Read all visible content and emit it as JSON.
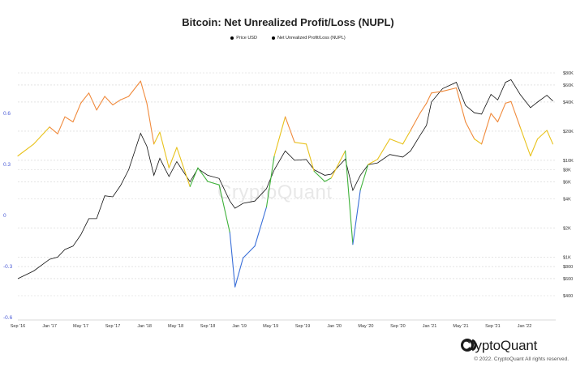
{
  "chart_data": {
    "type": "line",
    "title": "Bitcoin: Net Unrealized Profit/Loss (NUPL)",
    "legend": [
      "Price USD",
      "Net Unrealized Profit/Loss (NUPL)"
    ],
    "legend_placement": "top-center",
    "x_ticks": [
      "Sep '16",
      "Jan '17",
      "May '17",
      "Sep '17",
      "Jan '18",
      "May '18",
      "Sep '18",
      "Jan '19",
      "May '19",
      "Sep '19",
      "Jan '20",
      "May '20",
      "Sep '20",
      "Jan '21",
      "May '21",
      "Sep '21",
      "Jan '22"
    ],
    "x_range": [
      "2016-09",
      "2022-05"
    ],
    "y_left": {
      "ticks": [
        0.6,
        0.3,
        0,
        -0.3,
        -0.6
      ],
      "range": [
        -0.6,
        0.8
      ]
    },
    "y_right": {
      "ticks": [
        "$80K",
        "$60K",
        "$40K",
        "$20K",
        "$10K",
        "$8K",
        "$6K",
        "$4K",
        "$2K",
        "$1K",
        "$800",
        "$600",
        "$400"
      ],
      "scale": "log",
      "range": [
        400,
        80000
      ]
    },
    "grid": "horizontal dashed",
    "series": [
      {
        "name": "Price USD",
        "axis": "right",
        "color": "#111111",
        "points": [
          [
            "2016-09-01",
            600
          ],
          [
            "2016-11-01",
            720
          ],
          [
            "2017-01-01",
            950
          ],
          [
            "2017-02-01",
            1000
          ],
          [
            "2017-03-01",
            1200
          ],
          [
            "2017-04-01",
            1300
          ],
          [
            "2017-05-01",
            1700
          ],
          [
            "2017-06-01",
            2500
          ],
          [
            "2017-07-01",
            2500
          ],
          [
            "2017-08-01",
            4300
          ],
          [
            "2017-09-01",
            4200
          ],
          [
            "2017-10-01",
            5500
          ],
          [
            "2017-11-01",
            8000
          ],
          [
            "2017-12-17",
            19000
          ],
          [
            "2018-01-10",
            14000
          ],
          [
            "2018-02-06",
            7000
          ],
          [
            "2018-03-01",
            10500
          ],
          [
            "2018-04-05",
            6800
          ],
          [
            "2018-05-05",
            9700
          ],
          [
            "2018-06-25",
            6000
          ],
          [
            "2018-07-25",
            8200
          ],
          [
            "2018-09-01",
            7000
          ],
          [
            "2018-10-15",
            6500
          ],
          [
            "2018-11-25",
            3800
          ],
          [
            "2018-12-15",
            3200
          ],
          [
            "2019-01-15",
            3600
          ],
          [
            "2019-03-01",
            3800
          ],
          [
            "2019-04-15",
            5100
          ],
          [
            "2019-05-15",
            8000
          ],
          [
            "2019-06-26",
            12500
          ],
          [
            "2019-08-01",
            10000
          ],
          [
            "2019-09-15",
            10200
          ],
          [
            "2019-10-15",
            8000
          ],
          [
            "2019-11-25",
            7000
          ],
          [
            "2019-12-20",
            7200
          ],
          [
            "2020-02-12",
            10300
          ],
          [
            "2020-03-12",
            4900
          ],
          [
            "2020-04-10",
            7000
          ],
          [
            "2020-05-10",
            9000
          ],
          [
            "2020-06-15",
            9400
          ],
          [
            "2020-08-01",
            11500
          ],
          [
            "2020-09-20",
            10800
          ],
          [
            "2020-10-20",
            12500
          ],
          [
            "2020-11-25",
            18000
          ],
          [
            "2020-12-20",
            23000
          ],
          [
            "2021-01-08",
            40000
          ],
          [
            "2021-02-20",
            55000
          ],
          [
            "2021-04-14",
            64000
          ],
          [
            "2021-05-19",
            37000
          ],
          [
            "2021-06-22",
            31000
          ],
          [
            "2021-07-20",
            30000
          ],
          [
            "2021-08-25",
            48000
          ],
          [
            "2021-09-20",
            42000
          ],
          [
            "2021-10-20",
            64000
          ],
          [
            "2021-11-10",
            68000
          ],
          [
            "2021-12-15",
            48000
          ],
          [
            "2022-01-24",
            35000
          ],
          [
            "2022-02-20",
            40000
          ],
          [
            "2022-03-28",
            47000
          ],
          [
            "2022-04-20",
            41000
          ]
        ]
      },
      {
        "name": "Net Unrealized Profit/Loss (NUPL)",
        "axis": "left",
        "colors": {
          "capitulation": "#3a6fd8",
          "hope_fear": "#3fb23a",
          "optimism_anxiety": "#e8c21b",
          "belief_denial": "#f08a3c",
          "euphoria_greed": "#ec3a3a"
        },
        "points": [
          [
            "2016-09-01",
            0.35
          ],
          [
            "2016-11-01",
            0.42
          ],
          [
            "2017-01-01",
            0.52
          ],
          [
            "2017-02-01",
            0.48
          ],
          [
            "2017-03-01",
            0.58
          ],
          [
            "2017-04-01",
            0.55
          ],
          [
            "2017-05-01",
            0.66
          ],
          [
            "2017-06-01",
            0.72
          ],
          [
            "2017-07-01",
            0.62
          ],
          [
            "2017-08-01",
            0.7
          ],
          [
            "2017-09-01",
            0.65
          ],
          [
            "2017-10-01",
            0.68
          ],
          [
            "2017-11-01",
            0.7
          ],
          [
            "2017-12-17",
            0.79
          ],
          [
            "2018-01-10",
            0.66
          ],
          [
            "2018-02-06",
            0.42
          ],
          [
            "2018-03-01",
            0.49
          ],
          [
            "2018-04-05",
            0.28
          ],
          [
            "2018-05-05",
            0.4
          ],
          [
            "2018-06-25",
            0.17
          ],
          [
            "2018-07-25",
            0.28
          ],
          [
            "2018-09-01",
            0.2
          ],
          [
            "2018-10-15",
            0.18
          ],
          [
            "2018-11-25",
            -0.1
          ],
          [
            "2018-12-15",
            -0.42
          ],
          [
            "2019-01-15",
            -0.25
          ],
          [
            "2019-03-01",
            -0.18
          ],
          [
            "2019-04-15",
            0.05
          ],
          [
            "2019-05-15",
            0.35
          ],
          [
            "2019-06-26",
            0.58
          ],
          [
            "2019-08-01",
            0.43
          ],
          [
            "2019-09-15",
            0.42
          ],
          [
            "2019-10-15",
            0.26
          ],
          [
            "2019-11-25",
            0.2
          ],
          [
            "2019-12-20",
            0.22
          ],
          [
            "2020-02-12",
            0.38
          ],
          [
            "2020-03-12",
            -0.17
          ],
          [
            "2020-04-10",
            0.15
          ],
          [
            "2020-05-10",
            0.3
          ],
          [
            "2020-06-15",
            0.33
          ],
          [
            "2020-08-01",
            0.45
          ],
          [
            "2020-09-20",
            0.42
          ],
          [
            "2020-10-20",
            0.5
          ],
          [
            "2020-11-25",
            0.6
          ],
          [
            "2020-12-20",
            0.66
          ],
          [
            "2021-01-08",
            0.72
          ],
          [
            "2021-02-20",
            0.73
          ],
          [
            "2021-04-14",
            0.75
          ],
          [
            "2021-05-19",
            0.55
          ],
          [
            "2021-06-22",
            0.45
          ],
          [
            "2021-07-20",
            0.42
          ],
          [
            "2021-08-25",
            0.6
          ],
          [
            "2021-09-20",
            0.55
          ],
          [
            "2021-10-20",
            0.66
          ],
          [
            "2021-11-10",
            0.67
          ],
          [
            "2021-12-15",
            0.52
          ],
          [
            "2022-01-24",
            0.35
          ],
          [
            "2022-02-20",
            0.45
          ],
          [
            "2022-03-28",
            0.5
          ],
          [
            "2022-04-20",
            0.42
          ]
        ]
      }
    ]
  },
  "watermark": "CryptoQuant",
  "brand": "CryptoQuant",
  "copyright": "© 2022. CryptoQuant All rights reserved."
}
